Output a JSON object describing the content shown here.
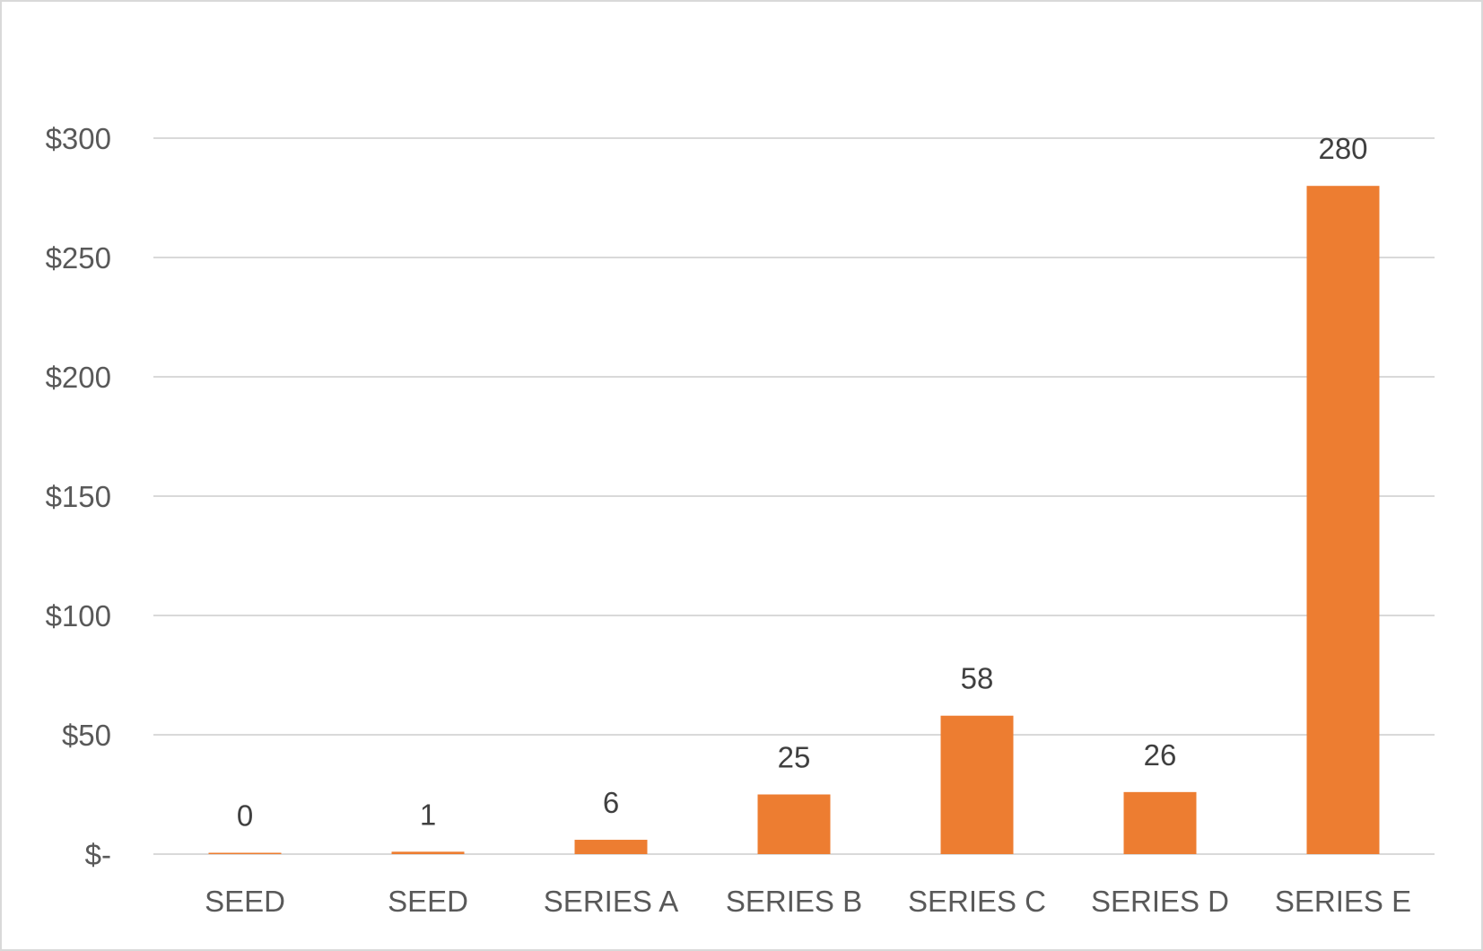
{
  "chart_data": {
    "type": "bar",
    "categories": [
      "SEED",
      "SEED",
      "SERIES A",
      "SERIES B",
      "SERIES C",
      "SERIES D",
      "SERIES E"
    ],
    "values": [
      0.5,
      1,
      6,
      25,
      58,
      26,
      280
    ],
    "data_labels": [
      "0",
      "1",
      "6",
      "25",
      "58",
      "26",
      "280"
    ],
    "title": "",
    "xlabel": "",
    "ylabel": "",
    "ylim": [
      0,
      300
    ],
    "yticks": [
      0,
      50,
      100,
      150,
      200,
      250,
      300
    ],
    "ytick_labels": [
      "$-",
      "$50",
      "$100",
      "$150",
      "$200",
      "$250",
      "$300"
    ],
    "grid": true,
    "legend": "none",
    "colors": {
      "bar": "#ed7d31",
      "grid": "#d9d9d9",
      "tick_text": "#595959",
      "label_text": "#404040",
      "border": "#d9d9d9"
    }
  }
}
